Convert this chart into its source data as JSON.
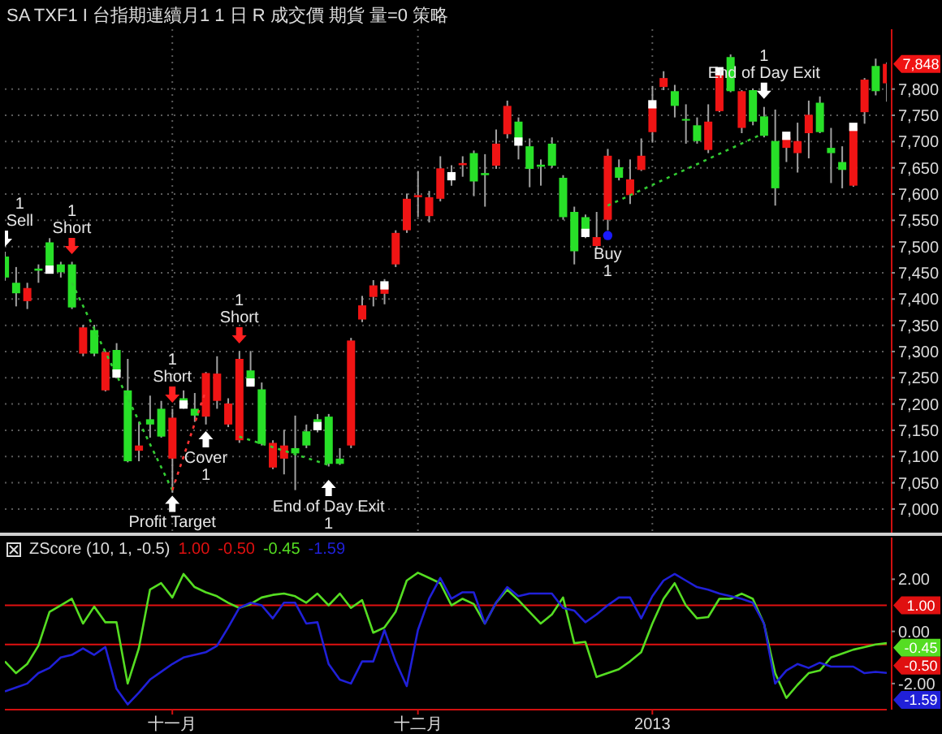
{
  "chart_data": [
    {
      "type": "candlestick",
      "title": "SA TXF1 I 台指期連續月1 1 日 R 成交價 期貨 量=0 策略",
      "categories": [
        null,
        null,
        null,
        null,
        null,
        null,
        null,
        null,
        null,
        null,
        null,
        null,
        null,
        null,
        null,
        null,
        null,
        null,
        null,
        null,
        null,
        null,
        null,
        null,
        null,
        null,
        null,
        null,
        null,
        null,
        null,
        null,
        null,
        null,
        null,
        null,
        null,
        null,
        null,
        null,
        null,
        null,
        null,
        null,
        null,
        null,
        null,
        null,
        null,
        null,
        null,
        null,
        null,
        null,
        null,
        null,
        null,
        null,
        null,
        null,
        null,
        null,
        null,
        null,
        null,
        null,
        null,
        null,
        null,
        null,
        null,
        null,
        null,
        null,
        null,
        null,
        null,
        null,
        null,
        null
      ],
      "ohlc": [
        [
          7481,
          7490,
          7435,
          7441
        ],
        [
          7431,
          7461,
          7386,
          7411
        ],
        [
          7396,
          7431,
          7381,
          7421
        ],
        [
          7458,
          7466,
          7431,
          7454
        ],
        [
          7508,
          7516,
          7451,
          7451
        ],
        [
          7466,
          7471,
          7441,
          7451
        ],
        [
          7466,
          7471,
          7381,
          7384
        ],
        [
          7296,
          7351,
          7291,
          7346
        ],
        [
          7341,
          7351,
          7291,
          7296
        ],
        [
          7226,
          7301,
          7224,
          7299
        ],
        [
          7303,
          7316,
          7251,
          7261
        ],
        [
          7226,
          7286,
          7089,
          7091
        ],
        [
          7111,
          7166,
          7091,
          7121
        ],
        [
          7171,
          7216,
          7136,
          7161
        ],
        [
          7191,
          7206,
          7136,
          7138
        ],
        [
          7096,
          7191,
          7031,
          7174
        ],
        [
          7211,
          7226,
          7191,
          7196
        ],
        [
          7191,
          7221,
          7166,
          7178
        ],
        [
          7176,
          7261,
          7161,
          7259
        ],
        [
          7206,
          7291,
          7191,
          7258
        ],
        [
          7161,
          7211,
          7156,
          7201
        ],
        [
          7131,
          7301,
          7126,
          7286
        ],
        [
          7264,
          7301,
          7236,
          7236
        ],
        [
          7228,
          7241,
          7121,
          7124
        ],
        [
          7079,
          7131,
          7076,
          7126
        ],
        [
          7096,
          7151,
          7066,
          7121
        ],
        [
          7116,
          7178,
          7036,
          7106
        ],
        [
          7148,
          7161,
          7116,
          7121
        ],
        [
          7171,
          7181,
          7146,
          7151
        ],
        [
          7176,
          7181,
          7081,
          7086
        ],
        [
          7096,
          7116,
          7084,
          7086
        ],
        [
          7121,
          7326,
          7116,
          7321
        ],
        [
          7361,
          7406,
          7356,
          7388
        ],
        [
          7404,
          7436,
          7386,
          7426
        ],
        [
          7410,
          7438,
          7390,
          7428
        ],
        [
          7466,
          7531,
          7461,
          7526
        ],
        [
          7531,
          7601,
          7526,
          7591
        ],
        [
          7594,
          7644,
          7556,
          7598
        ],
        [
          7558,
          7606,
          7546,
          7594
        ],
        [
          7591,
          7672,
          7586,
          7649
        ],
        [
          7640,
          7655,
          7616,
          7632
        ],
        [
          7655,
          7672,
          7633,
          7659
        ],
        [
          7678,
          7683,
          7596,
          7624
        ],
        [
          7640,
          7676,
          7576,
          7636
        ],
        [
          7654,
          7723,
          7648,
          7696
        ],
        [
          7714,
          7778,
          7706,
          7768
        ],
        [
          7738,
          7746,
          7666,
          7700
        ],
        [
          7691,
          7706,
          7613,
          7648
        ],
        [
          7656,
          7666,
          7616,
          7652
        ],
        [
          7696,
          7708,
          7650,
          7654
        ],
        [
          7631,
          7636,
          7551,
          7556
        ],
        [
          7566,
          7576,
          7466,
          7491
        ],
        [
          7556,
          7561,
          7516,
          7526
        ],
        [
          7501,
          7566,
          7496,
          7518
        ],
        [
          7551,
          7686,
          7531,
          7673
        ],
        [
          7651,
          7666,
          7626,
          7631
        ],
        [
          7598,
          7666,
          7581,
          7628
        ],
        [
          7646,
          7706,
          7644,
          7673
        ],
        [
          7718,
          7806,
          7698,
          7766
        ],
        [
          7804,
          7834,
          7798,
          7821
        ],
        [
          7796,
          7808,
          7746,
          7768
        ],
        [
          7743,
          7771,
          7696,
          7740
        ],
        [
          7731,
          7746,
          7696,
          7701
        ],
        [
          7684,
          7771,
          7678,
          7738
        ],
        [
          7758,
          7841,
          7756,
          7831
        ],
        [
          7861,
          7866,
          7794,
          7796
        ],
        [
          7726,
          7798,
          7716,
          7796
        ],
        [
          7798,
          7801,
          7731,
          7738
        ],
        [
          7748,
          7766,
          7708,
          7711
        ],
        [
          7701,
          7761,
          7578,
          7611
        ],
        [
          7688,
          7716,
          7661,
          7708
        ],
        [
          7678,
          7736,
          7641,
          7701
        ],
        [
          7716,
          7778,
          7668,
          7751
        ],
        [
          7774,
          7786,
          7716,
          7718
        ],
        [
          7688,
          7726,
          7621,
          7678
        ],
        [
          7661,
          7691,
          7611,
          7646
        ],
        [
          7616,
          7734,
          7614,
          7726
        ],
        [
          7756,
          7821,
          7734,
          7818
        ],
        [
          7844,
          7858,
          7788,
          7796
        ],
        [
          7811,
          7851,
          7776,
          7848
        ]
      ],
      "colors": [
        "#28e028",
        "#28e028",
        "#f01414",
        "#28e028",
        "#28e028",
        "#28e028",
        "#28e028",
        "#f01414",
        "#28e028",
        "#f01414",
        "#28e028",
        "#28e028",
        "#f01414",
        "#28e028",
        "#28e028",
        "#f01414",
        "#28e028",
        "#28e028",
        "#f01414",
        "#f01414",
        "#f01414",
        "#f01414",
        "#28e028",
        "#28e028",
        "#f01414",
        "#f01414",
        "#28e028",
        "#28e028",
        "#28e028",
        "#28e028",
        "#28e028",
        "#f01414",
        "#f01414",
        "#f01414",
        "#f01414",
        "#f01414",
        "#f01414",
        "#f01414",
        "#f01414",
        "#f01414",
        "#28e028",
        "#f01414",
        "#28e028",
        "#28e028",
        "#f01414",
        "#f01414",
        "#28e028",
        "#28e028",
        "#28e028",
        "#28e028",
        "#28e028",
        "#28e028",
        "#28e028",
        "#f01414",
        "#f01414",
        "#28e028",
        "#f01414",
        "#f01414",
        "#f01414",
        "#f01414",
        "#28e028",
        "#28e028",
        "#28e028",
        "#f01414",
        "#f01414",
        "#28e028",
        "#f01414",
        "#28e028",
        "#28e028",
        "#28e028",
        "#f01414",
        "#f01414",
        "#f01414",
        "#28e028",
        "#28e028",
        "#28e028",
        "#f01414",
        "#f01414",
        "#28e028",
        "#f01414"
      ],
      "value_labels": [
        null,
        null,
        null,
        null,
        null,
        null,
        null,
        null,
        null,
        null,
        null,
        null,
        null,
        null,
        null,
        null,
        null,
        null,
        null,
        null,
        null,
        null,
        null,
        null,
        null,
        null,
        null,
        null,
        null,
        null,
        null,
        null,
        null,
        null,
        null,
        null,
        null,
        null,
        null,
        null,
        null,
        null,
        null,
        null,
        null,
        null,
        null,
        null,
        null,
        null,
        null,
        null,
        null,
        null,
        null,
        null,
        null,
        null,
        null,
        null,
        null,
        null,
        null,
        null,
        null,
        null,
        null,
        null,
        null,
        null,
        null,
        null,
        null,
        null,
        null,
        null,
        null,
        null,
        null,
        "7,848"
      ],
      "series": [
        {
          "type": "line",
          "color": "#33cc33",
          "line_style": "dotted",
          "marker": "none",
          "values": [
            null,
            null,
            null,
            null,
            null,
            null,
            7431,
            null,
            null,
            null,
            null,
            null,
            null,
            null,
            null,
            7036,
            null,
            null,
            null,
            null,
            null,
            null,
            null,
            null,
            null,
            null,
            null,
            null,
            null,
            null,
            null,
            null,
            null,
            null,
            null,
            null,
            null,
            null,
            null,
            null,
            null,
            null,
            null,
            null,
            null,
            null,
            null,
            null,
            null,
            null,
            null,
            null,
            null,
            null,
            null,
            null,
            null,
            null,
            null,
            null,
            null,
            null,
            null,
            null,
            null,
            null,
            null,
            null,
            null,
            null,
            null,
            null,
            null,
            null,
            null,
            null,
            null,
            null,
            null,
            null
          ]
        },
        {
          "type": "line",
          "color": "#ff3333",
          "line_style": "dotted",
          "marker": "none",
          "values": [
            null,
            null,
            null,
            null,
            null,
            null,
            null,
            null,
            null,
            null,
            null,
            null,
            null,
            null,
            null,
            7036,
            null,
            null,
            7226,
            null,
            null,
            null,
            null,
            null,
            null,
            null,
            null,
            null,
            null,
            null,
            null,
            null,
            null,
            null,
            null,
            null,
            null,
            null,
            null,
            null,
            null,
            null,
            null,
            null,
            null,
            null,
            null,
            null,
            null,
            null,
            null,
            null,
            null,
            null,
            null,
            null,
            null,
            null,
            null,
            null,
            null,
            null,
            null,
            null,
            null,
            null,
            null,
            null,
            null,
            null,
            null,
            null,
            null,
            null,
            null,
            null,
            null,
            null,
            null,
            null
          ]
        },
        {
          "type": "line",
          "color": "#33cc33",
          "line_style": "dotted",
          "marker": "none",
          "values": [
            null,
            null,
            null,
            null,
            null,
            null,
            null,
            null,
            null,
            null,
            null,
            null,
            null,
            null,
            null,
            null,
            null,
            null,
            null,
            null,
            null,
            7138,
            null,
            null,
            null,
            null,
            null,
            null,
            null,
            7084,
            null,
            null,
            null,
            null,
            null,
            null,
            null,
            null,
            null,
            null,
            null,
            null,
            null,
            null,
            null,
            null,
            null,
            null,
            null,
            null,
            null,
            null,
            null,
            null,
            null,
            null,
            null,
            null,
            null,
            null,
            null,
            null,
            null,
            null,
            null,
            null,
            null,
            null,
            null,
            null,
            null,
            null,
            null,
            null,
            null,
            null,
            null,
            null,
            null,
            null
          ]
        },
        {
          "type": "line",
          "color": "#33cc33",
          "line_style": "dotted",
          "marker": "none",
          "values": [
            null,
            null,
            null,
            null,
            null,
            null,
            null,
            null,
            null,
            null,
            null,
            null,
            null,
            null,
            null,
            null,
            null,
            null,
            null,
            null,
            null,
            null,
            null,
            null,
            null,
            null,
            null,
            null,
            null,
            null,
            null,
            null,
            null,
            null,
            null,
            null,
            null,
            null,
            null,
            null,
            null,
            null,
            null,
            null,
            null,
            null,
            null,
            null,
            null,
            null,
            null,
            null,
            null,
            null,
            7578,
            null,
            null,
            null,
            null,
            null,
            null,
            null,
            null,
            null,
            null,
            null,
            null,
            null,
            7716,
            null,
            null,
            null,
            null,
            null,
            null,
            null,
            null,
            null,
            null,
            null
          ]
        },
        {
          "type": "scatter",
          "color": "#ffffff",
          "marker": "square",
          "values": [
            null,
            null,
            null,
            null,
            7456,
            null,
            null,
            null,
            null,
            null,
            7258,
            null,
            null,
            null,
            null,
            null,
            7199,
            null,
            null,
            null,
            null,
            null,
            7241,
            null,
            null,
            null,
            null,
            null,
            7158,
            null,
            null,
            null,
            null,
            null,
            7426,
            null,
            null,
            null,
            null,
            null,
            7634,
            null,
            null,
            null,
            null,
            null,
            7700,
            null,
            null,
            null,
            null,
            null,
            7526,
            null,
            null,
            null,
            null,
            null,
            7771,
            null,
            null,
            null,
            null,
            null,
            7834,
            null,
            null,
            null,
            null,
            null,
            7711,
            null,
            null,
            null,
            null,
            null,
            7728,
            null,
            null,
            null
          ]
        },
        {
          "type": "scatter",
          "color": "#1a1aff",
          "marker": "circle",
          "values": [
            null,
            null,
            null,
            null,
            null,
            null,
            null,
            null,
            null,
            null,
            null,
            null,
            null,
            null,
            null,
            null,
            null,
            null,
            null,
            null,
            null,
            null,
            null,
            null,
            null,
            null,
            null,
            null,
            null,
            null,
            null,
            null,
            null,
            null,
            null,
            null,
            null,
            null,
            null,
            null,
            null,
            null,
            null,
            null,
            null,
            null,
            null,
            null,
            null,
            null,
            null,
            null,
            null,
            null,
            7521,
            null,
            null,
            null,
            null,
            null,
            null,
            null,
            null,
            null,
            null,
            null,
            null,
            null,
            null,
            null,
            null,
            null,
            null,
            null,
            null,
            null,
            null,
            null,
            null,
            null
          ]
        },
        {
          "type": "scatter",
          "color": "#ffffff",
          "marker": "triangle",
          "values": [
            7515,
            null,
            null,
            null,
            null,
            null,
            7501,
            null,
            null,
            null,
            null,
            null,
            null,
            null,
            null,
            7218,
            null,
            null,
            null,
            null,
            null,
            7331,
            null,
            null,
            null,
            null,
            null,
            null,
            null,
            null,
            null,
            null,
            null,
            null,
            null,
            null,
            null,
            null,
            null,
            null,
            null,
            null,
            null,
            null,
            null,
            null,
            null,
            null,
            null,
            null,
            null,
            null,
            null,
            null,
            null,
            null,
            null,
            null,
            null,
            null,
            null,
            null,
            null,
            null,
            null,
            null,
            null,
            null,
            7797,
            null,
            null,
            null,
            null,
            null,
            null,
            null,
            null,
            null,
            null,
            null
          ],
          "colors": [
            null,
            null,
            null,
            null,
            null,
            null,
            "#ff2020",
            null,
            null,
            null,
            null,
            null,
            null,
            null,
            null,
            "#ff2020",
            null,
            null,
            null,
            null,
            null,
            "#ff2020",
            null,
            null,
            null,
            null,
            null,
            null,
            null,
            null,
            null,
            null,
            null,
            null,
            null,
            null,
            null,
            null,
            null,
            null,
            null,
            null,
            null,
            null,
            null,
            null,
            null,
            null,
            null,
            null,
            null,
            null,
            null,
            null,
            null,
            null,
            null,
            null,
            null,
            null,
            null,
            null,
            null,
            null,
            null,
            null,
            null,
            null,
            null,
            null,
            null,
            null,
            null,
            null,
            null,
            null,
            null,
            null,
            null,
            null
          ]
        },
        {
          "type": "scatter",
          "color": "#ffffff",
          "marker": "triangle",
          "values": [
            null,
            null,
            null,
            null,
            null,
            null,
            null,
            null,
            null,
            null,
            null,
            null,
            null,
            null,
            null,
            7010,
            null,
            null,
            7133,
            null,
            null,
            null,
            null,
            null,
            null,
            null,
            null,
            null,
            null,
            7040,
            null,
            null,
            null,
            null,
            null,
            null,
            null,
            null,
            null,
            null,
            null,
            null,
            null,
            null,
            null,
            null,
            null,
            null,
            null,
            null,
            null,
            null,
            null,
            null,
            null,
            null,
            null,
            null,
            null,
            null,
            null,
            null,
            null,
            null,
            null,
            null,
            null,
            null,
            null,
            null,
            null,
            null,
            null,
            null,
            null,
            null,
            null,
            null,
            null,
            null
          ]
        }
      ],
      "ylim": [
        6955,
        7914
      ],
      "yticks": [
        {
          "value": 7000,
          "label": "7,000"
        },
        {
          "value": 7050,
          "label": "7,050"
        },
        {
          "value": 7100,
          "label": "7,100"
        },
        {
          "value": 7150,
          "label": "7,150"
        },
        {
          "value": 7200,
          "label": "7,200"
        },
        {
          "value": 7250,
          "label": "7,250"
        },
        {
          "value": 7300,
          "label": "7,300"
        },
        {
          "value": 7350,
          "label": "7,350"
        },
        {
          "value": 7400,
          "label": "7,400"
        },
        {
          "value": 7450,
          "label": "7,450"
        },
        {
          "value": 7500,
          "label": "7,500"
        },
        {
          "value": 7550,
          "label": "7,550"
        },
        {
          "value": 7600,
          "label": "7,600"
        },
        {
          "value": 7650,
          "label": "7,650"
        },
        {
          "value": 7700,
          "label": "7,700"
        },
        {
          "value": 7750,
          "label": "7,750"
        },
        {
          "value": 7800,
          "label": "7,800"
        }
      ],
      "tick_labels": "y",
      "grid": true,
      "annotations": [
        {
          "text": "1\nSell",
          "y": 7515
        },
        {
          "text": "1\nShort",
          "y": 7501
        },
        {
          "text": "1\nShort",
          "y": 7218
        },
        {
          "text": "1\nShort",
          "y": 7331
        },
        {
          "text": "1\nEnd of Day Exit",
          "y": 7797
        },
        {
          "text": "Profit Target",
          "y": 7010
        },
        {
          "text": "Cover\n1",
          "y": 7133
        },
        {
          "text": "End of Day Exit\n1",
          "y": 7040
        },
        {
          "text": "Buy\n1",
          "y": 7521
        }
      ]
    },
    {
      "type": "line",
      "title": "ZScore (10, 1, -0.5)",
      "categories": [
        null,
        null,
        null,
        null,
        null,
        null,
        null,
        null,
        null,
        null,
        null,
        null,
        null,
        null,
        null,
        "十一月",
        null,
        null,
        null,
        null,
        null,
        null,
        null,
        null,
        null,
        null,
        null,
        null,
        null,
        null,
        null,
        null,
        null,
        null,
        null,
        null,
        null,
        "十二月",
        null,
        null,
        null,
        null,
        null,
        null,
        null,
        null,
        null,
        null,
        null,
        null,
        null,
        null,
        null,
        null,
        null,
        null,
        null,
        null,
        "2013",
        null,
        null,
        null,
        null,
        null,
        null,
        null,
        null,
        null,
        null,
        null,
        null,
        null,
        null,
        null,
        null,
        null,
        null,
        null,
        null,
        null
      ],
      "series": [
        {
          "color": "#55dd22",
          "values": [
            -1.15,
            -1.6,
            -1.25,
            -0.55,
            0.75,
            1.0,
            1.25,
            0.3,
            0.95,
            0.35,
            0.35,
            -2.0,
            -0.65,
            1.6,
            1.85,
            1.3,
            2.2,
            1.7,
            1.5,
            1.35,
            1.1,
            0.9,
            1.05,
            1.3,
            1.4,
            1.45,
            1.35,
            1.1,
            1.45,
            1.0,
            1.45,
            0.9,
            1.2,
            -0.05,
            0.15,
            0.75,
            1.95,
            2.25,
            2.05,
            1.85,
            1.0,
            1.25,
            1.05,
            0.3,
            1.1,
            1.6,
            1.2,
            0.75,
            0.3,
            0.65,
            1.3,
            -0.45,
            -0.4,
            -1.75,
            -1.6,
            -1.45,
            -1.15,
            -0.8,
            0.3,
            1.25,
            1.85,
            1.0,
            0.5,
            0.55,
            1.25,
            1.25,
            1.45,
            1.25,
            0.3,
            -1.6,
            -2.55,
            -2.05,
            -1.6,
            -1.5,
            -1.0,
            -0.85,
            -0.7,
            -0.6,
            -0.5,
            -0.45
          ],
          "value_labels": [
            null,
            null,
            null,
            null,
            null,
            null,
            null,
            null,
            null,
            null,
            null,
            null,
            null,
            null,
            null,
            null,
            null,
            null,
            null,
            null,
            null,
            null,
            null,
            null,
            null,
            null,
            null,
            null,
            null,
            null,
            null,
            null,
            null,
            null,
            null,
            null,
            null,
            null,
            null,
            null,
            null,
            null,
            null,
            null,
            null,
            null,
            null,
            null,
            null,
            null,
            null,
            null,
            null,
            null,
            null,
            null,
            null,
            null,
            null,
            null,
            null,
            null,
            null,
            null,
            null,
            null,
            null,
            null,
            null,
            null,
            null,
            null,
            null,
            null,
            null,
            null,
            null,
            null,
            null,
            "-0.45"
          ]
        },
        {
          "color": "#2020d8",
          "values": [
            -2.3,
            -2.15,
            -2.0,
            -1.6,
            -1.4,
            -1.0,
            -0.9,
            -0.65,
            -0.9,
            -0.6,
            -2.2,
            -2.8,
            -2.35,
            -1.85,
            -1.55,
            -1.25,
            -1.0,
            -0.9,
            -0.8,
            -0.55,
            0.15,
            0.9,
            1.1,
            1.0,
            0.5,
            1.1,
            1.1,
            0.3,
            0.35,
            -1.25,
            -1.85,
            -2.0,
            -1.15,
            -1.15,
            0.05,
            -1.15,
            -2.1,
            0.05,
            1.25,
            2.05,
            1.25,
            1.5,
            1.5,
            0.3,
            1.1,
            1.7,
            1.35,
            1.45,
            1.45,
            1.45,
            0.9,
            0.8,
            0.35,
            0.65,
            1.0,
            1.3,
            1.3,
            0.5,
            1.35,
            1.95,
            2.2,
            1.95,
            1.7,
            1.6,
            1.45,
            1.35,
            1.25,
            1.1,
            0.3,
            -2.0,
            -1.5,
            -1.25,
            -1.4,
            -1.2,
            -1.35,
            -1.35,
            -1.35,
            -1.6,
            -1.55,
            -1.59
          ],
          "value_labels": [
            null,
            null,
            null,
            null,
            null,
            null,
            null,
            null,
            null,
            null,
            null,
            null,
            null,
            null,
            null,
            null,
            null,
            null,
            null,
            null,
            null,
            null,
            null,
            null,
            null,
            null,
            null,
            null,
            null,
            null,
            null,
            null,
            null,
            null,
            null,
            null,
            null,
            null,
            null,
            null,
            null,
            null,
            null,
            null,
            null,
            null,
            null,
            null,
            null,
            null,
            null,
            null,
            null,
            null,
            null,
            null,
            null,
            null,
            null,
            null,
            null,
            null,
            null,
            null,
            null,
            null,
            null,
            null,
            null,
            null,
            null,
            null,
            null,
            null,
            null,
            null,
            null,
            null,
            null,
            "-1.59"
          ]
        }
      ],
      "ylim": [
        -3.0,
        3.6
      ],
      "yticks": [
        {
          "value": 2,
          "label": "2.00"
        },
        {
          "value": 0,
          "label": "0.00"
        },
        {
          "value": -2,
          "label": "-2.00"
        }
      ],
      "marker": "none",
      "ref_lines": [
        {
          "axis": "y",
          "value": 1,
          "label": "1.00",
          "color": "#e01010"
        },
        {
          "axis": "y",
          "value": -0.5,
          "label": "-0.50",
          "color": "#e01010"
        }
      ]
    }
  ]
}
